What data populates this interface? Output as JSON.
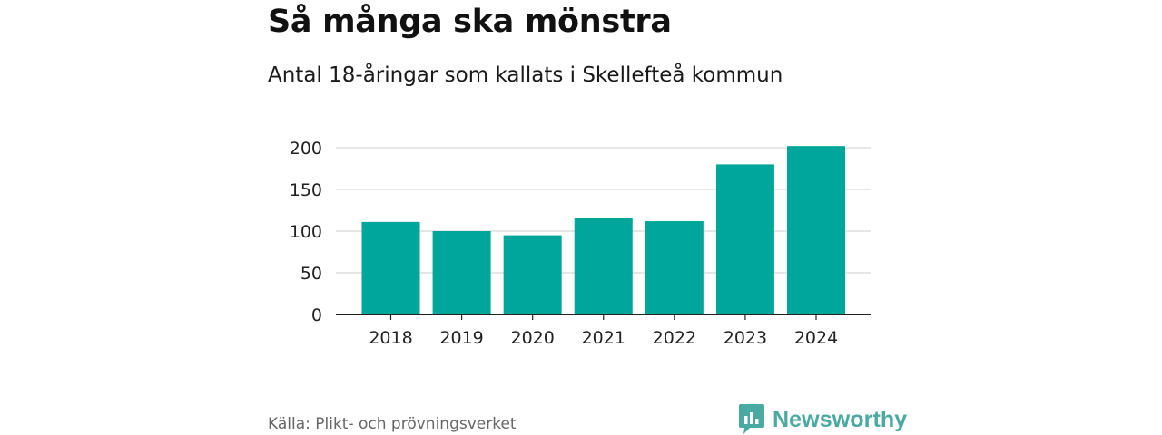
{
  "colors": {
    "bar": "#00a69a",
    "grid": "#dddddd",
    "axis": "#222222",
    "brand": "#4aa9a0",
    "source_text": "#666666"
  },
  "chart_data": {
    "type": "bar",
    "title": "Så många ska mönstra",
    "subtitle": "Antal 18-åringar som kallats i Skellefteå kommun",
    "categories": [
      "2018",
      "2019",
      "2020",
      "2021",
      "2022",
      "2023",
      "2024"
    ],
    "values": [
      111,
      100,
      95,
      116,
      112,
      180,
      202
    ],
    "xlabel": "",
    "ylabel": "",
    "ylim": [
      0,
      200
    ],
    "yticks": [
      0,
      50,
      100,
      150,
      200
    ],
    "grid": true,
    "legend": "none"
  },
  "footer": {
    "source": "Källa: Plikt- och prövningsverket",
    "brand": "Newsworthy",
    "brand_icon": "newsworthy-logo-icon"
  }
}
